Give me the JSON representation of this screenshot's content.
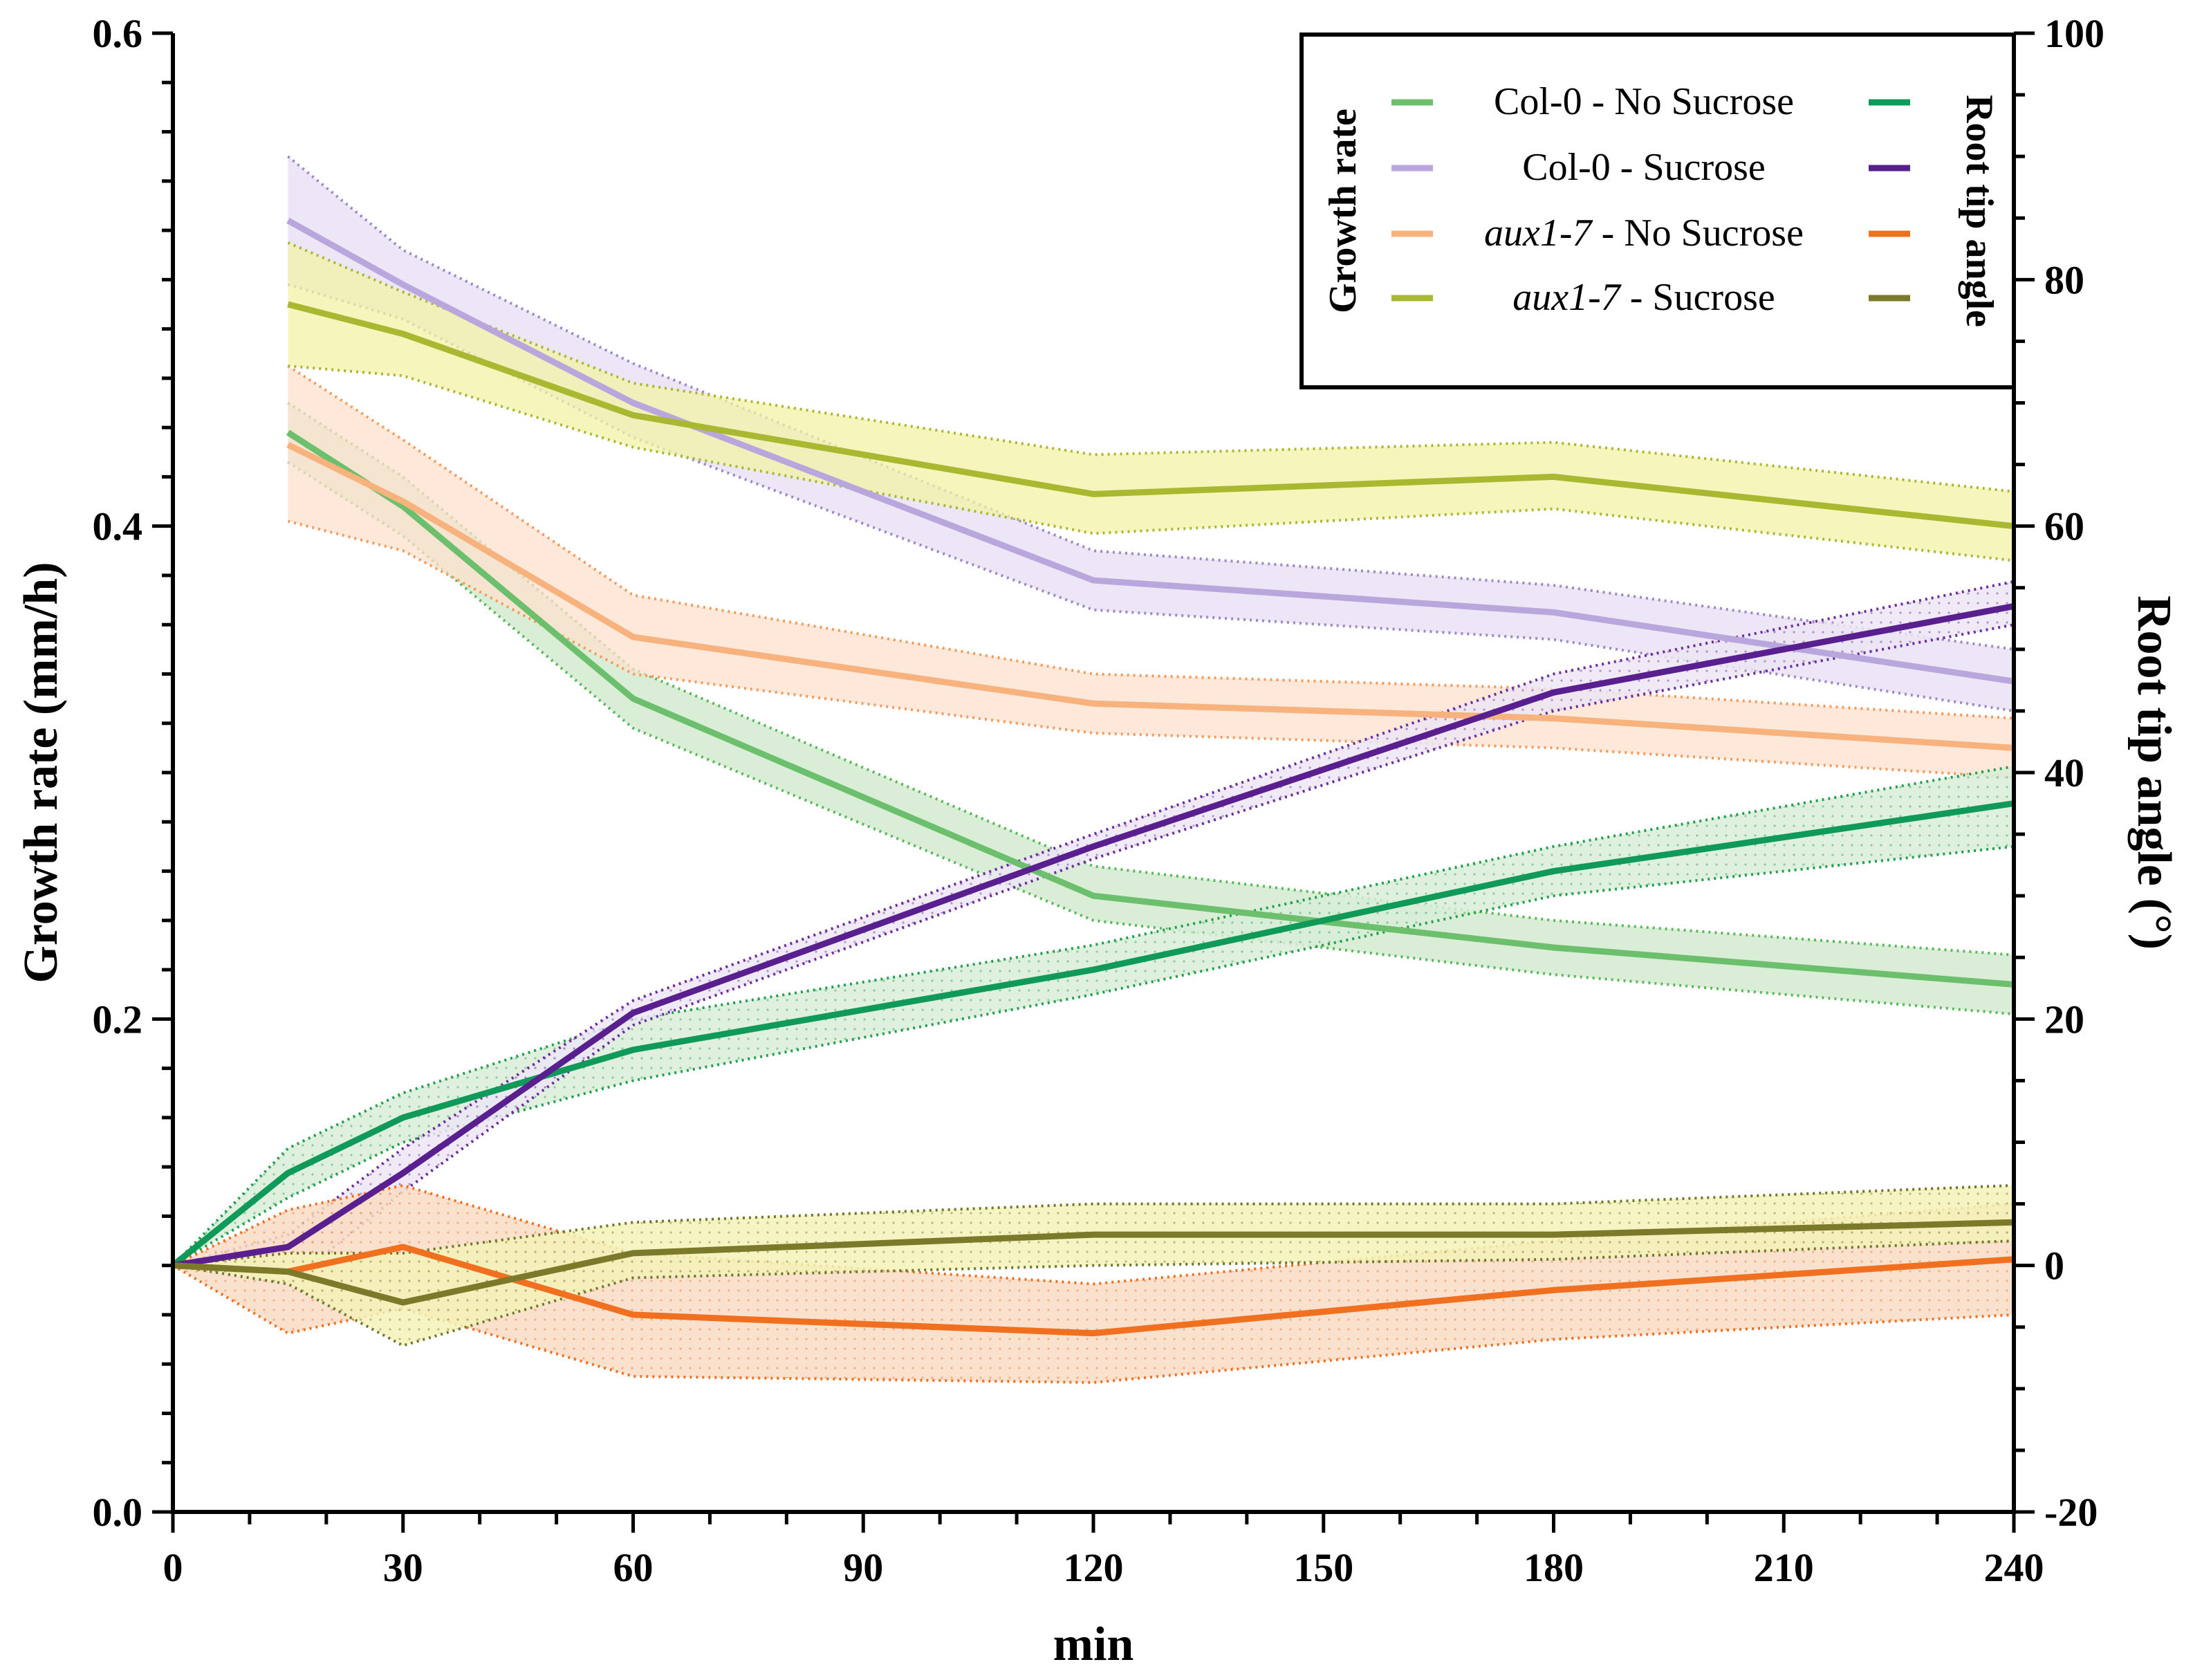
{
  "chart_data": {
    "type": "line",
    "title": "",
    "xlabel": "min",
    "ylabel": "Growth rate (mm/h)",
    "y2label": "Root tip angle (°)",
    "xlim": [
      0,
      240
    ],
    "ylim": [
      0.0,
      0.6
    ],
    "y2lim": [
      -20,
      100
    ],
    "xticks": [
      0,
      30,
      60,
      90,
      120,
      150,
      180,
      210,
      240
    ],
    "yticks": [
      "0.0",
      "0.2",
      "0.4",
      "0.6"
    ],
    "yticks_values": [
      0.0,
      0.2,
      0.4,
      0.6
    ],
    "y2ticks": [
      -20,
      0,
      20,
      40,
      60,
      80,
      100
    ],
    "legend": {
      "position": "top-right",
      "left_title": "Growth rate",
      "right_title": "Root tip angle",
      "entries": [
        {
          "label_plain": "Col-0 - No Sucrose",
          "italic_part": "",
          "rest": "Col-0 - No Sucrose",
          "growth_color": "#6cbf6c",
          "angle_color": "#0f9a5a"
        },
        {
          "label_plain": "Col-0 - Sucrose",
          "italic_part": "",
          "rest": "Col-0 - Sucrose",
          "growth_color": "#b9a6dc",
          "angle_color": "#5a1f8f"
        },
        {
          "label_plain": "aux1-7 - No Sucrose",
          "italic_part": "aux1-7",
          "rest": " - No Sucrose",
          "growth_color": "#f7b27d",
          "angle_color": "#f07020"
        },
        {
          "label_plain": "aux1-7 - Sucrose",
          "italic_part": "aux1-7",
          "rest": " - Sucrose",
          "growth_color": "#a8b830",
          "angle_color": "#7a7a2a"
        }
      ]
    },
    "series": [
      {
        "name": "Col-0 - No Sucrose (Growth rate)",
        "axis": "left",
        "color": "#6cbf6c",
        "band_color": "#cde8c9",
        "edge_color": "#59b959",
        "x": [
          15,
          30,
          60,
          120,
          180,
          240
        ],
        "values": [
          0.438,
          0.408,
          0.33,
          0.25,
          0.229,
          0.214
        ],
        "lower": [
          0.426,
          0.396,
          0.318,
          0.24,
          0.218,
          0.202
        ],
        "upper": [
          0.45,
          0.42,
          0.342,
          0.262,
          0.24,
          0.226
        ]
      },
      {
        "name": "Col-0 - Sucrose (Growth rate)",
        "axis": "left",
        "color": "#b9a6dc",
        "band_color": "#e6def3",
        "edge_color": "#9d88c8",
        "x": [
          15,
          30,
          60,
          120,
          180,
          240
        ],
        "values": [
          0.524,
          0.498,
          0.45,
          0.378,
          0.365,
          0.337
        ],
        "lower": [
          0.498,
          0.484,
          0.436,
          0.366,
          0.354,
          0.325
        ],
        "upper": [
          0.55,
          0.512,
          0.466,
          0.39,
          0.376,
          0.35
        ]
      },
      {
        "name": "aux1-7 - No Sucrose (Growth rate)",
        "axis": "left",
        "color": "#f7b27d",
        "band_color": "#fde0cc",
        "edge_color": "#f59a5a",
        "x": [
          15,
          30,
          60,
          120,
          180,
          240
        ],
        "values": [
          0.433,
          0.41,
          0.355,
          0.328,
          0.322,
          0.31
        ],
        "lower": [
          0.402,
          0.39,
          0.34,
          0.316,
          0.31,
          0.298
        ],
        "upper": [
          0.465,
          0.435,
          0.372,
          0.34,
          0.334,
          0.322
        ]
      },
      {
        "name": "aux1-7 - Sucrose (Growth rate)",
        "axis": "left",
        "color": "#a8b830",
        "band_color": "#f3f3a6",
        "edge_color": "#a8b830",
        "x": [
          15,
          30,
          60,
          120,
          180,
          240
        ],
        "values": [
          0.49,
          0.478,
          0.445,
          0.413,
          0.42,
          0.4
        ],
        "lower": [
          0.465,
          0.461,
          0.432,
          0.397,
          0.407,
          0.386
        ],
        "upper": [
          0.515,
          0.495,
          0.458,
          0.429,
          0.434,
          0.414
        ]
      },
      {
        "name": "Col-0 - No Sucrose (Root tip angle)",
        "axis": "right",
        "color": "#0f9a5a",
        "band_color": "#d9eed8",
        "edge_color": "#22a050",
        "x": [
          0,
          15,
          30,
          60,
          120,
          180,
          240
        ],
        "values": [
          0,
          7.5,
          12,
          17.5,
          24,
          32,
          37.5
        ],
        "lower": [
          0,
          5.5,
          10,
          15,
          22,
          30,
          34
        ],
        "upper": [
          0,
          9.5,
          14,
          20,
          26,
          34,
          40.5
        ]
      },
      {
        "name": "Col-0 - Sucrose (Root tip angle)",
        "axis": "right",
        "color": "#5a1f8f",
        "band_color": "#ece6f4",
        "edge_color": "#6a2ca0",
        "x": [
          0,
          15,
          30,
          60,
          120,
          180,
          240
        ],
        "values": [
          0,
          1.5,
          7.5,
          20.5,
          34,
          46.5,
          53.5
        ],
        "lower": [
          0,
          -1.5,
          6,
          19.5,
          33,
          45,
          52
        ],
        "upper": [
          0,
          2.5,
          9.5,
          21.5,
          35,
          48,
          55.5
        ]
      },
      {
        "name": "aux1-7 - No Sucrose (Root tip angle)",
        "axis": "right",
        "color": "#f07020",
        "band_color": "#f9dcc4",
        "edge_color": "#f07020",
        "x": [
          0,
          15,
          30,
          60,
          120,
          180,
          240
        ],
        "values": [
          0,
          -0.5,
          1.5,
          -4,
          -5.5,
          -2,
          0.5
        ],
        "lower": [
          0,
          -5.5,
          -3.5,
          -9,
          -9.5,
          -6,
          -4
        ],
        "upper": [
          0,
          4.5,
          6.5,
          1,
          -1.5,
          2,
          5
        ]
      },
      {
        "name": "aux1-7 - Sucrose (Root tip angle)",
        "axis": "right",
        "color": "#7a7a2a",
        "band_color": "#f4f2b8",
        "edge_color": "#6e7a2a",
        "x": [
          0,
          15,
          30,
          60,
          120,
          180,
          240
        ],
        "values": [
          0,
          -0.5,
          -3,
          1,
          2.5,
          2.5,
          3.5
        ],
        "lower": [
          0,
          -1.5,
          -6.5,
          -1,
          0,
          0.5,
          2
        ],
        "upper": [
          0,
          1,
          1,
          3.5,
          5,
          5,
          6.5
        ]
      }
    ]
  }
}
